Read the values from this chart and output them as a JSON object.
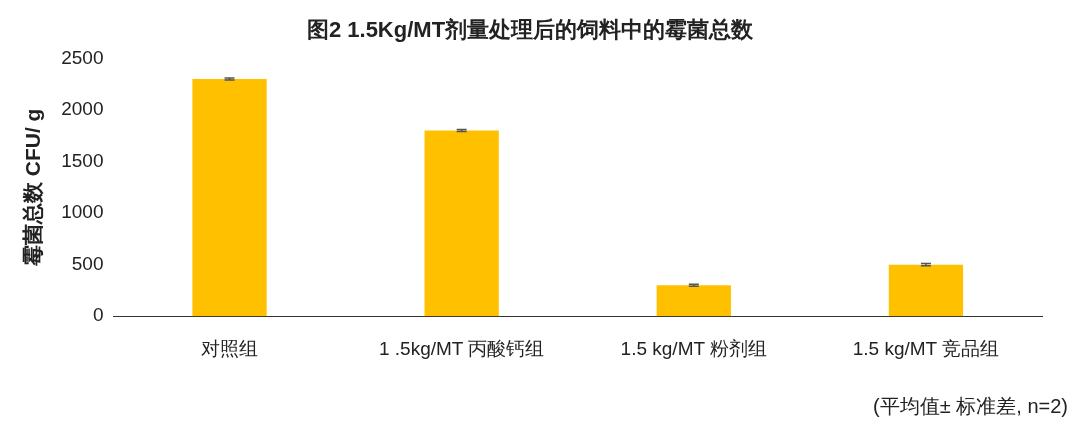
{
  "chart_data": {
    "type": "bar",
    "title": "图2 1.5Kg/MT剂量处理后的饲料中的霉菌总数",
    "ylabel": "霉菌总数 CFU/ g",
    "categories": [
      "对照组",
      "1 .5kg/MT 丙酸钙组",
      "1.5 kg/MT 粉剂组",
      "1.5 kg/MT 竞品组"
    ],
    "values": [
      2300,
      1800,
      300,
      500
    ],
    "errors": [
      10,
      10,
      10,
      10
    ],
    "color": "#ffc000",
    "ylim": [
      0,
      2500
    ],
    "yticks": [
      0,
      500,
      1000,
      1500,
      2000,
      2500
    ],
    "grid": false,
    "legend": false,
    "annotations": [
      "(平均值± 标准差, n=2)"
    ]
  }
}
